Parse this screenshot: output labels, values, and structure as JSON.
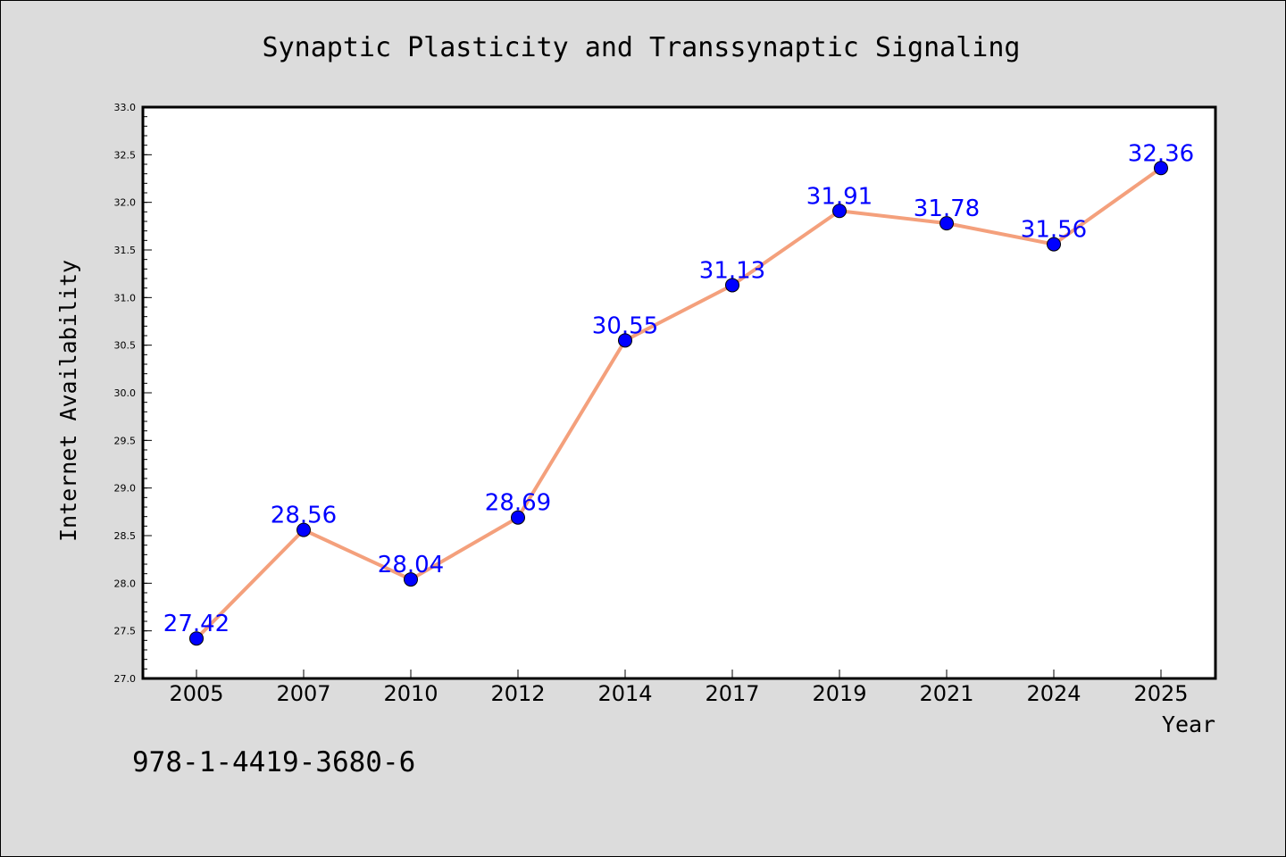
{
  "chart_data": {
    "type": "line",
    "title": "Synaptic Plasticity and Transsynaptic Signaling",
    "xlabel": "Year",
    "ylabel": "Internet Availability",
    "categories": [
      "2005",
      "2007",
      "2010",
      "2012",
      "2014",
      "2017",
      "2019",
      "2021",
      "2024",
      "2025"
    ],
    "values": [
      27.42,
      28.56,
      28.04,
      28.69,
      30.55,
      31.13,
      31.91,
      31.78,
      31.56,
      32.36
    ],
    "data_labels": [
      "27.42",
      "28.56",
      "28.04",
      "28.69",
      "30.55",
      "31.13",
      "31.91",
      "31.78",
      "31.56",
      "32.36"
    ],
    "ylim": [
      27.0,
      33.0
    ],
    "yticks": [
      "27.0",
      "27.5",
      "28.0",
      "28.5",
      "29.0",
      "29.5",
      "30.0",
      "30.5",
      "31.0",
      "31.5",
      "32.0",
      "32.5",
      "33.0"
    ],
    "grid": false,
    "legend": "none",
    "colors": {
      "line": "#f4a07c",
      "marker": "#0000ff",
      "label": "#0000ff",
      "plot_background": "#ffffff",
      "page_background": "#dcdcdc"
    }
  },
  "footer": {
    "isbn": "978-1-4419-3680-6"
  }
}
